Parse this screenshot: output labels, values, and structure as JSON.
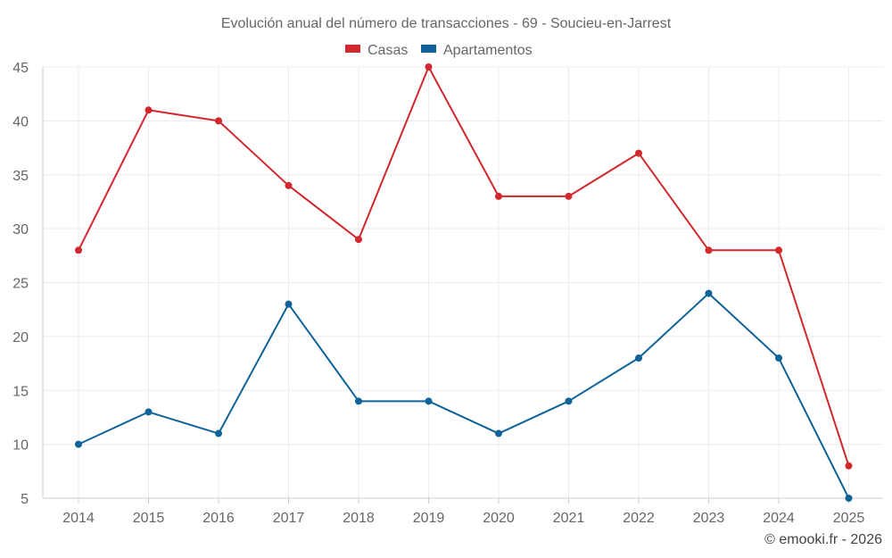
{
  "chart_data": {
    "type": "line",
    "title": "Evolución anual del número de transacciones - 69 - Soucieu-en-Jarrest",
    "categories": [
      "2014",
      "2015",
      "2016",
      "2017",
      "2018",
      "2019",
      "2020",
      "2021",
      "2022",
      "2023",
      "2024",
      "2025"
    ],
    "series": [
      {
        "name": "Casas",
        "color": "#d0282c",
        "values": [
          28,
          41,
          40,
          34,
          29,
          45,
          33,
          33,
          37,
          28,
          28,
          8
        ]
      },
      {
        "name": "Apartamentos",
        "color": "#0f6398",
        "values": [
          10,
          13,
          11,
          23,
          14,
          14,
          11,
          14,
          18,
          24,
          18,
          5
        ]
      }
    ],
    "ylim": [
      5,
      45
    ],
    "yticks": [
      "5",
      "10",
      "15",
      "20",
      "25",
      "30",
      "35",
      "40",
      "45"
    ],
    "xlabel": "",
    "ylabel": "",
    "grid": true,
    "legend_position": "top-center"
  },
  "credit": "© emooki.fr - 2026"
}
